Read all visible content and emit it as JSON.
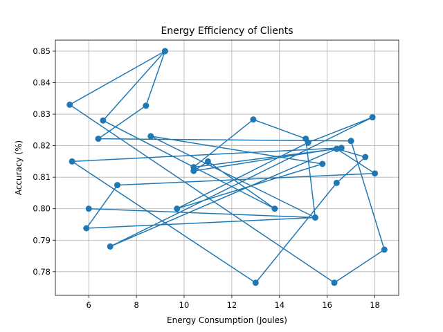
{
  "chart_data": {
    "type": "line",
    "title": "Energy Efficiency of Clients",
    "xlabel": "Energy Consumption (Joules)",
    "ylabel": "Accuracy (%)",
    "xlim": [
      4.6,
      19.0
    ],
    "ylim": [
      0.7725,
      0.8535
    ],
    "xticks": [
      6,
      8,
      10,
      12,
      14,
      16,
      18
    ],
    "yticks": [
      0.78,
      0.79,
      0.8,
      0.81,
      0.82,
      0.83,
      0.84,
      0.85
    ],
    "xtick_labels": [
      "6",
      "8",
      "10",
      "12",
      "14",
      "16",
      "18"
    ],
    "ytick_labels": [
      "0.78",
      "0.79",
      "0.80",
      "0.81",
      "0.82",
      "0.83",
      "0.84",
      "0.85"
    ],
    "grid": true,
    "color": "#1f77b4",
    "series": [
      {
        "x": [
          9.2,
          5.2,
          16.3,
          18.4,
          17.0,
          6.4,
          8.4,
          9.2,
          6.6,
          13.8,
          11.0,
          10.4,
          16.6,
          5.3,
          13.0,
          16.4,
          17.6,
          16.4,
          6.9,
          17.9,
          15.2,
          9.7,
          15.8,
          8.6,
          15.5,
          15.1,
          12.9,
          10.4,
          16.4,
          18.0,
          7.2,
          5.9,
          15.5,
          6.0
        ],
        "y": [
          0.85,
          0.833,
          0.7765,
          0.787,
          0.8215,
          0.8222,
          0.8327,
          0.85,
          0.828,
          0.8,
          0.815,
          0.812,
          0.8193,
          0.815,
          0.7765,
          0.8082,
          0.8164,
          0.819,
          0.788,
          0.829,
          0.821,
          0.8,
          0.8142,
          0.823,
          0.7972,
          0.8222,
          0.8283,
          0.8132,
          0.819,
          0.8112,
          0.8075,
          0.7938,
          0.7972,
          0.8
        ]
      }
    ]
  }
}
